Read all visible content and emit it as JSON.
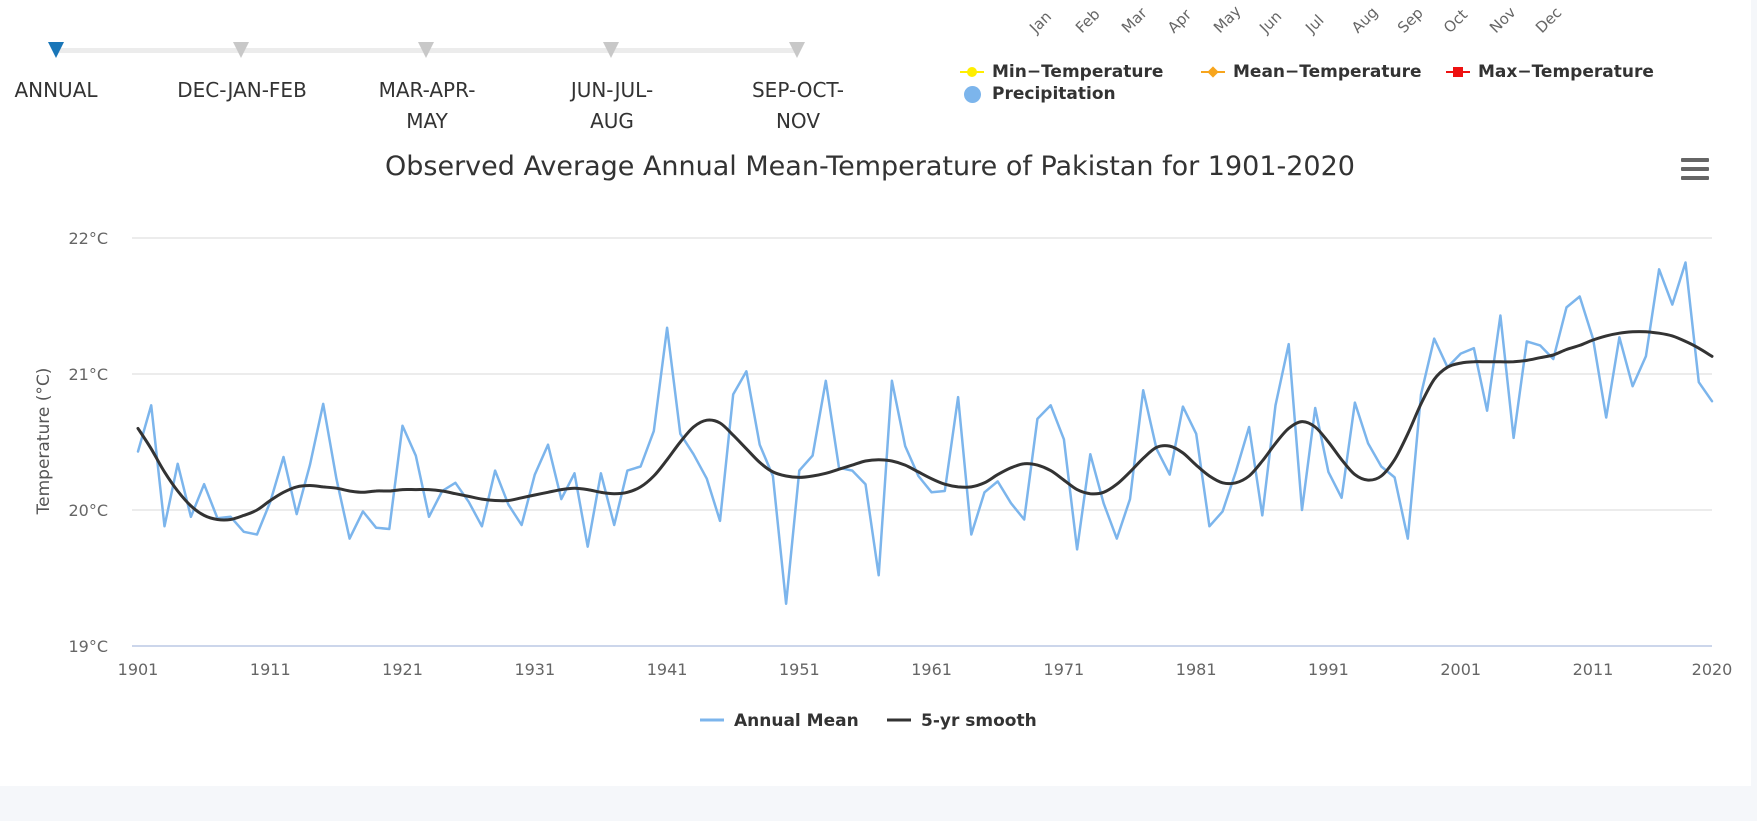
{
  "season_selector": {
    "seasons": [
      {
        "label_line1": "ANNUAL",
        "label_line2": "",
        "active": true
      },
      {
        "label_line1": "DEC-JAN-FEB",
        "label_line2": "",
        "active": false
      },
      {
        "label_line1": "MAR-APR-",
        "label_line2": "MAY",
        "active": false
      },
      {
        "label_line1": "JUN-JUL-",
        "label_line2": "AUG",
        "active": false
      },
      {
        "label_line1": "SEP-OCT-",
        "label_line2": "NOV",
        "active": false
      }
    ],
    "months": [
      "Jan",
      "Feb",
      "Mar",
      "Apr",
      "May",
      "Jun",
      "Jul",
      "Aug",
      "Sep",
      "Oct",
      "Nov",
      "Dec"
    ]
  },
  "top_legend": {
    "min_label": "Min−Temperature",
    "mean_label": "Mean−Temperature",
    "max_label": "Max−Temperature",
    "precip_label": "Precipitation",
    "colors": {
      "min": "#ffee00",
      "mean": "#f7a51d",
      "max": "#ee1111",
      "precip": "#7cb5ec"
    }
  },
  "menu": {
    "icon": "hamburger-menu-icon"
  },
  "chart_data": {
    "type": "line",
    "title": "Observed Average Annual Mean-Temperature of Pakistan for 1901-2020",
    "xlabel": "",
    "ylabel": "Temperature (°C)",
    "ylim": [
      19,
      22
    ],
    "xlim": [
      1901,
      2020
    ],
    "y_ticks": [
      19,
      20,
      21,
      22
    ],
    "y_tick_labels": [
      "19°C",
      "20°C",
      "21°C",
      "22°C"
    ],
    "x_ticks": [
      1901,
      1911,
      1921,
      1931,
      1941,
      1951,
      1961,
      1971,
      1981,
      1991,
      2001,
      2011,
      2020
    ],
    "x_tick_labels": [
      "1901",
      "1911",
      "1921",
      "1931",
      "1941",
      "1951",
      "1961",
      "1971",
      "1981",
      "1991",
      "2001",
      "2011",
      "2020"
    ],
    "grid": true,
    "legend_position": "bottom-center",
    "series": [
      {
        "name": "Annual Mean",
        "color": "#7cb5ec",
        "x_start": 1901,
        "values": [
          20.43,
          20.77,
          19.88,
          20.34,
          19.95,
          20.19,
          19.94,
          19.95,
          19.84,
          19.82,
          20.06,
          20.39,
          19.97,
          20.33,
          20.78,
          20.23,
          19.79,
          19.99,
          19.87,
          19.86,
          20.62,
          20.4,
          19.95,
          20.14,
          20.2,
          20.06,
          19.88,
          20.29,
          20.04,
          19.89,
          20.26,
          20.48,
          20.08,
          20.27,
          19.73,
          20.27,
          19.89,
          20.29,
          20.32,
          20.58,
          21.34,
          20.56,
          20.41,
          20.23,
          19.92,
          20.85,
          21.02,
          20.48,
          20.25,
          19.31,
          20.29,
          20.4,
          20.95,
          20.31,
          20.29,
          20.19,
          19.52,
          20.95,
          20.47,
          20.25,
          20.13,
          20.14,
          20.83,
          19.82,
          20.13,
          20.21,
          20.05,
          19.93,
          20.67,
          20.77,
          20.52,
          19.71,
          20.41,
          20.05,
          19.79,
          20.08,
          20.88,
          20.45,
          20.26,
          20.76,
          20.56,
          19.88,
          19.99,
          20.28,
          20.61,
          19.96,
          20.77,
          21.22,
          20.0,
          20.75,
          20.28,
          20.09,
          20.79,
          20.49,
          20.32,
          20.24,
          19.79,
          20.85,
          21.26,
          21.05,
          21.15,
          21.19,
          20.73,
          21.43,
          20.53,
          21.24,
          21.21,
          21.11,
          21.49,
          21.57,
          21.26,
          20.68,
          21.27,
          20.91,
          21.13,
          21.77,
          21.51,
          21.82,
          20.94,
          20.8
        ]
      },
      {
        "name": "5-yr smooth",
        "color": "#333333",
        "x_start": 1901,
        "values": [
          20.6,
          20.45,
          20.28,
          20.14,
          20.03,
          19.96,
          19.93,
          19.93,
          19.96,
          20.0,
          20.07,
          20.13,
          20.17,
          20.18,
          20.17,
          20.16,
          20.14,
          20.13,
          20.14,
          20.14,
          20.15,
          20.15,
          20.15,
          20.14,
          20.12,
          20.1,
          20.08,
          20.07,
          20.07,
          20.09,
          20.11,
          20.13,
          20.15,
          20.16,
          20.15,
          20.13,
          20.12,
          20.13,
          20.17,
          20.25,
          20.37,
          20.5,
          20.61,
          20.66,
          20.64,
          20.55,
          20.45,
          20.35,
          20.28,
          20.25,
          20.24,
          20.25,
          20.27,
          20.3,
          20.33,
          20.36,
          20.37,
          20.36,
          20.33,
          20.28,
          20.23,
          20.19,
          20.17,
          20.17,
          20.2,
          20.26,
          20.31,
          20.34,
          20.33,
          20.29,
          20.22,
          20.15,
          20.12,
          20.13,
          20.19,
          20.28,
          20.38,
          20.46,
          20.47,
          20.42,
          20.33,
          20.25,
          20.2,
          20.2,
          20.25,
          20.36,
          20.49,
          20.6,
          20.65,
          20.61,
          20.5,
          20.37,
          20.26,
          20.22,
          20.25,
          20.37,
          20.56,
          20.78,
          20.96,
          21.05,
          21.08,
          21.09,
          21.09,
          21.09,
          21.09,
          21.1,
          21.12,
          21.14,
          21.18,
          21.21,
          21.25,
          21.28,
          21.3,
          21.31,
          21.31,
          21.3,
          21.28,
          21.24,
          21.19,
          21.13
        ]
      }
    ]
  }
}
